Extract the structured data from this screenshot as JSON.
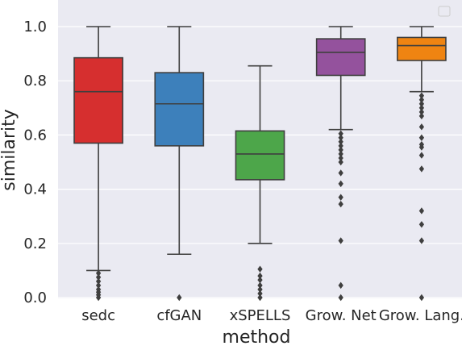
{
  "chart_data": {
    "type": "box",
    "title": "",
    "xlabel": "method",
    "ylabel": "similarity",
    "ylim": [
      0.0,
      1.1
    ],
    "yticks": [
      0.0,
      0.2,
      0.4,
      0.6,
      0.8,
      1.0
    ],
    "ytick_labels": [
      "0.0",
      "0.2",
      "0.4",
      "0.6",
      "0.8",
      "1.0"
    ],
    "grid": true,
    "legend": "top-right (empty)",
    "categories": [
      "sedc",
      "cfGAN",
      "xSPELLS",
      "Grow. Net",
      "Grow. Lang."
    ],
    "colors": [
      "#d62f2f",
      "#3d80bb",
      "#4da64a",
      "#94529d",
      "#ef8412"
    ],
    "boxes": [
      {
        "name": "sedc",
        "whisker_low": 0.1,
        "q1": 0.57,
        "median": 0.76,
        "q3": 0.885,
        "whisker_high": 1.0,
        "outliers": [
          0.09,
          0.075,
          0.06,
          0.045,
          0.03,
          0.02,
          0.01,
          0.0
        ]
      },
      {
        "name": "cfGAN",
        "whisker_low": 0.16,
        "q1": 0.56,
        "median": 0.715,
        "q3": 0.83,
        "whisker_high": 1.0,
        "outliers": [
          0.0
        ]
      },
      {
        "name": "xSPELLS",
        "whisker_low": 0.2,
        "q1": 0.435,
        "median": 0.53,
        "q3": 0.615,
        "whisker_high": 0.855,
        "outliers": [
          0.105,
          0.08,
          0.065,
          0.045,
          0.03,
          0.015,
          0.0
        ]
      },
      {
        "name": "Grow. Net",
        "whisker_low": 0.62,
        "q1": 0.82,
        "median": 0.905,
        "q3": 0.955,
        "whisker_high": 1.0,
        "outliers": [
          0.605,
          0.59,
          0.575,
          0.56,
          0.545,
          0.53,
          0.515,
          0.5,
          0.46,
          0.42,
          0.37,
          0.345,
          0.21,
          0.045,
          0.0
        ]
      },
      {
        "name": "Grow. Lang.",
        "whisker_low": 0.76,
        "q1": 0.875,
        "median": 0.93,
        "q3": 0.96,
        "whisker_high": 1.0,
        "outliers": [
          0.745,
          0.73,
          0.715,
          0.7,
          0.685,
          0.67,
          0.63,
          0.59,
          0.565,
          0.555,
          0.525,
          0.475,
          0.32,
          0.27,
          0.21,
          0.0
        ]
      }
    ]
  }
}
